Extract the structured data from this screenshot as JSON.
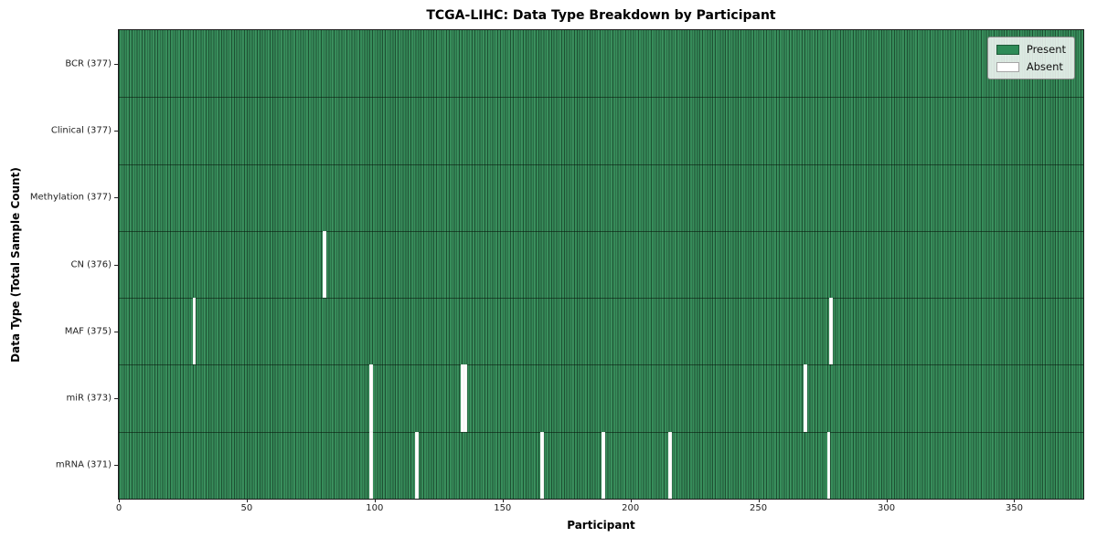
{
  "chart_data": {
    "type": "heatmap",
    "title": "TCGA-LIHC: Data Type Breakdown by Participant",
    "xlabel": "Participant",
    "ylabel": "Data Type (Total Sample Count)",
    "n_participants": 377,
    "xlim": [
      0,
      377
    ],
    "x_ticks": [
      0,
      50,
      100,
      150,
      200,
      250,
      300,
      350
    ],
    "grid": false,
    "legend_position": "upper-right",
    "colors": {
      "present": "#2e8b57",
      "absent": "#ffffff"
    },
    "legend": [
      {
        "label": "Present",
        "color": "#2e8b57"
      },
      {
        "label": "Absent",
        "color": "#ffffff"
      }
    ],
    "rows": [
      {
        "label": "BCR (377)",
        "data_type": "BCR",
        "present_count": 377,
        "absent_count": 0,
        "absent_participants": []
      },
      {
        "label": "Clinical (377)",
        "data_type": "Clinical",
        "present_count": 377,
        "absent_count": 0,
        "absent_participants": []
      },
      {
        "label": "Methylation (377)",
        "data_type": "Methylation",
        "present_count": 377,
        "absent_count": 0,
        "absent_participants": []
      },
      {
        "label": "CN (376)",
        "data_type": "CN",
        "present_count": 376,
        "absent_count": 1,
        "absent_participants": [
          80
        ]
      },
      {
        "label": "MAF (375)",
        "data_type": "MAF",
        "present_count": 375,
        "absent_count": 2,
        "absent_participants": [
          29,
          278
        ]
      },
      {
        "label": "miR (373)",
        "data_type": "miR",
        "present_count": 373,
        "absent_count": 4,
        "absent_participants": [
          98,
          134,
          135,
          268
        ]
      },
      {
        "label": "mRNA (371)",
        "data_type": "mRNA",
        "present_count": 371,
        "absent_count": 6,
        "absent_participants": [
          98,
          116,
          165,
          189,
          215,
          277
        ]
      }
    ]
  }
}
